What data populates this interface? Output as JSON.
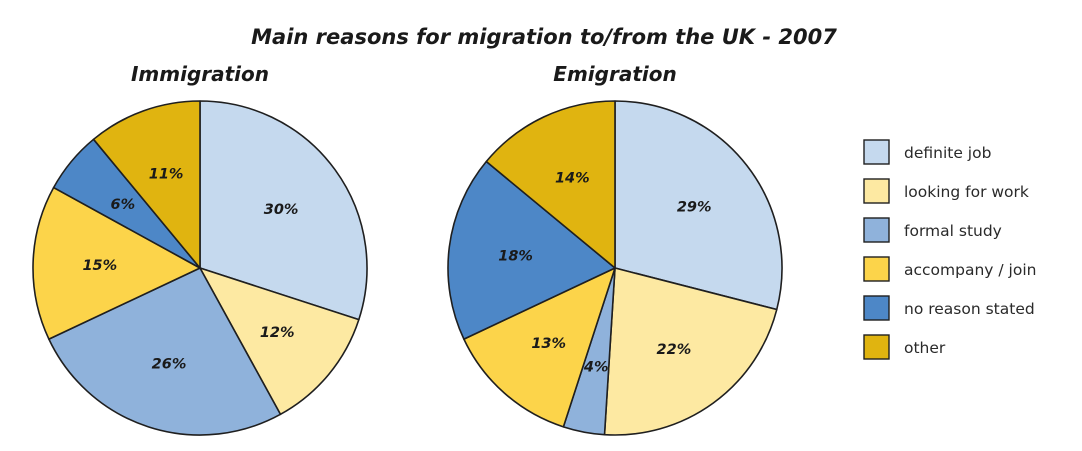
{
  "chart_data": {
    "type": "pie",
    "title": "Main reasons for migration to/from the UK - 2007",
    "categories": [
      "definite job",
      "looking for work",
      "formal study",
      "accompany / join",
      "no reason stated",
      "other"
    ],
    "colors": [
      "#c5d9ee",
      "#fde9a2",
      "#8fb2db",
      "#fcd44a",
      "#4d87c7",
      "#e0b410"
    ],
    "legend_position": "right",
    "pies": [
      {
        "title": "Immigration",
        "values": [
          30,
          12,
          26,
          15,
          6,
          11
        ],
        "labels": [
          "30%",
          "12%",
          "26%",
          "15%",
          "6%",
          "11%"
        ]
      },
      {
        "title": "Emigration",
        "values": [
          29,
          22,
          4,
          13,
          18,
          14
        ],
        "labels": [
          "29%",
          "22%",
          "4%",
          "13%",
          "18%",
          "14%"
        ]
      }
    ]
  }
}
